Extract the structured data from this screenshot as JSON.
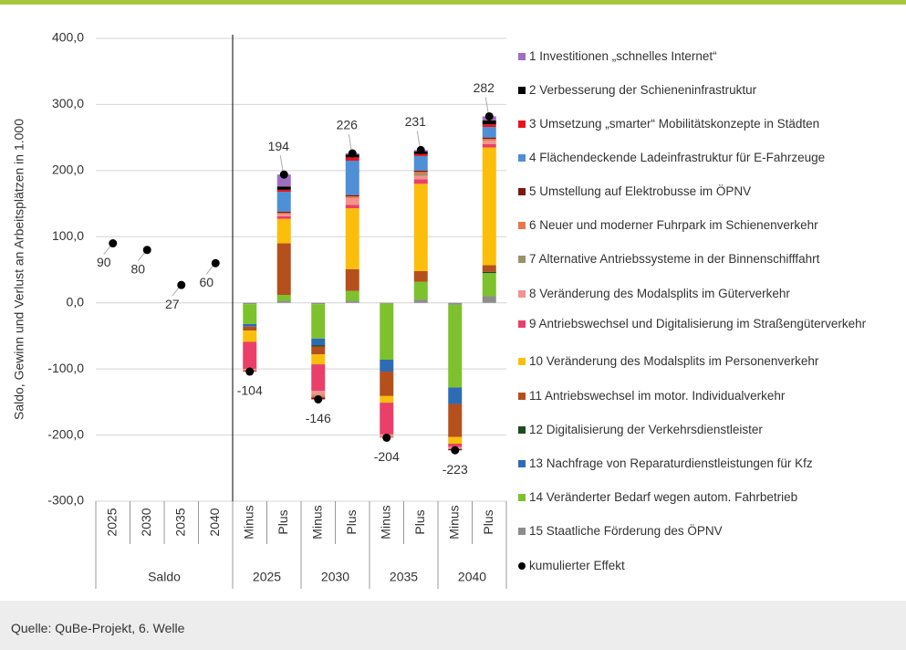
{
  "chart_data": {
    "type": "stacked_bar",
    "y_label": "Saldo, Gewinn und Verlust  an Arbeitsplätzen in 1.000",
    "source": "Quelle: QuBe-Projekt, 6. Welle",
    "groups": [
      {
        "name": "Saldo",
        "categories": [
          "2025",
          "2030",
          "2035",
          "2040"
        ]
      },
      {
        "name": "2025",
        "categories": [
          "Minus",
          "Plus"
        ]
      },
      {
        "name": "2030",
        "categories": [
          "Minus",
          "Plus"
        ]
      },
      {
        "name": "2035",
        "categories": [
          "Minus",
          "Plus"
        ]
      },
      {
        "name": "2040",
        "categories": [
          "Minus",
          "Plus"
        ]
      }
    ],
    "ylim": [
      -300,
      400
    ],
    "yticks": [
      {
        "value": -300,
        "label": "-300,0"
      },
      {
        "value": -200,
        "label": "-200,0"
      },
      {
        "value": -100,
        "label": "-100,0"
      },
      {
        "value": 0,
        "label": "0,0"
      },
      {
        "value": 100,
        "label": "100,0"
      },
      {
        "value": 200,
        "label": "200,0"
      },
      {
        "value": 300,
        "label": "300,0"
      },
      {
        "value": 400,
        "label": "400,0"
      }
    ],
    "grid": true,
    "legend": "right",
    "series": [
      {
        "name": "1 Investitionen „schnelles Internet“",
        "color": "#9e6fc0",
        "values": [
          null,
          null,
          null,
          null,
          null,
          18,
          null,
          2,
          null,
          2,
          null,
          6
        ]
      },
      {
        "name": "2 Verbesserung der Schieneninfrastruktur",
        "color": "#000000",
        "values": [
          null,
          null,
          null,
          null,
          null,
          5,
          null,
          4,
          null,
          4,
          null,
          6
        ]
      },
      {
        "name": "3 Umsetzung „smarter“ Mobilitätskonzepte in Städten",
        "color": "#e8141b",
        "values": [
          null,
          null,
          null,
          null,
          null,
          3,
          null,
          5,
          null,
          3,
          null,
          4
        ]
      },
      {
        "name": "4 Flächendeckende Ladeinfrastruktur für E-Fahrzeuge",
        "color": "#4f8fd6",
        "values": [
          null,
          null,
          null,
          null,
          null,
          30,
          null,
          52,
          null,
          22,
          null,
          16
        ]
      },
      {
        "name": "5 Umstellung auf Elektrobusse im ÖPNV",
        "color": "#7b1a12",
        "values": [
          null,
          null,
          null,
          null,
          -1,
          2,
          -3,
          2,
          null,
          2,
          -2,
          2
        ]
      },
      {
        "name": "6 Neuer und moderner Fuhrpark im Schienenverkehr",
        "color": "#e8774a",
        "values": [
          null,
          null,
          null,
          null,
          -1,
          2,
          -3,
          3,
          -2,
          3,
          null,
          3
        ]
      },
      {
        "name": "7 Alternative Antriebssysteme in der Binnenschifffahrt",
        "color": "#9c9268",
        "values": [
          null,
          null,
          null,
          null,
          null,
          null,
          -1,
          null,
          null,
          3,
          null,
          null
        ]
      },
      {
        "name": "8 Veränderung des Modalsplits im Güterverkehr",
        "color": "#f2938e",
        "values": [
          null,
          null,
          null,
          null,
          -2,
          3,
          -6,
          10,
          -3,
          5,
          -3,
          5
        ]
      },
      {
        "name": "9 Antriebswechsel und Digitalisierung im Straßengüterverkehr",
        "color": "#ea3f68",
        "values": [
          null,
          null,
          null,
          null,
          -41,
          4,
          -40,
          5,
          -48,
          7,
          -5,
          5
        ]
      },
      {
        "name": "10 Veränderung des Modalsplits im Personenverkehr",
        "color": "#fbbe0b",
        "values": [
          null,
          null,
          null,
          null,
          -17,
          37,
          -15,
          92,
          -10,
          132,
          -10,
          178
        ]
      },
      {
        "name": "11 Antriebswechsel im motor. Individualverkehr",
        "color": "#b5501c",
        "values": [
          null,
          null,
          null,
          null,
          -6,
          78,
          -12,
          33,
          -37,
          16,
          -50,
          10
        ]
      },
      {
        "name": "12 Digitalisierung der Verkehrsdienstleister",
        "color": "#1e4a1f",
        "values": [
          null,
          null,
          null,
          null,
          null,
          null,
          -2,
          null,
          null,
          null,
          null,
          2
        ]
      },
      {
        "name": "13 Nachfrage von Reparaturdienstleistungen für Kfz",
        "color": "#2e6bb5",
        "values": [
          null,
          null,
          null,
          null,
          -4,
          null,
          -10,
          null,
          -18,
          null,
          -25,
          null
        ]
      },
      {
        "name": "14 Veränderter Bedarf wegen autom. Fahrbetrieb",
        "color": "#7dc22d",
        "values": [
          null,
          null,
          null,
          null,
          -30,
          9,
          -52,
          15,
          -85,
          27,
          -125,
          35
        ]
      },
      {
        "name": "15 Staatliche Förderung des ÖPNV",
        "color": "#8d8d8d",
        "values": [
          null,
          null,
          null,
          null,
          -2,
          3,
          -2,
          3,
          -1,
          5,
          -3,
          10
        ]
      }
    ],
    "total": {
      "name": "kumulierter Effekt",
      "color": "#000000",
      "values": [
        90,
        80,
        27,
        60,
        -104,
        194,
        -146,
        226,
        -204,
        231,
        -223,
        282
      ]
    }
  }
}
